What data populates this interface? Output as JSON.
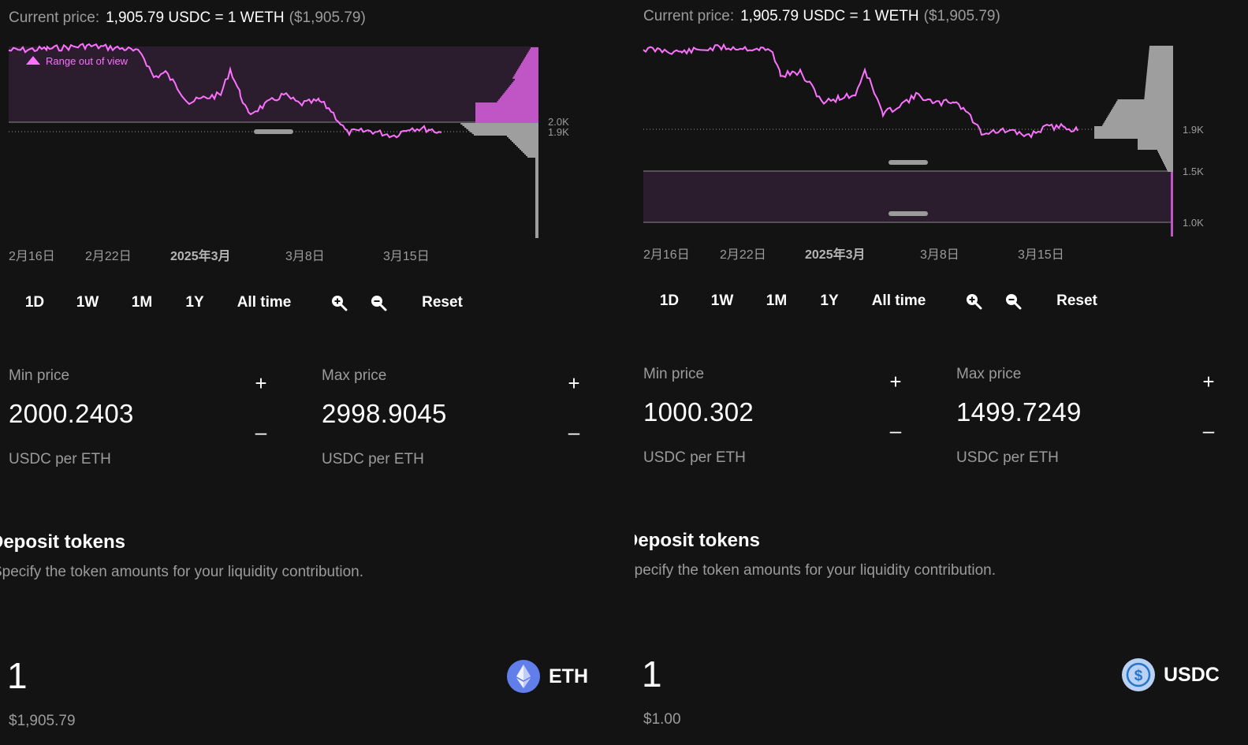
{
  "left": {
    "price_label": "Current price:",
    "price_value": "1,905.79 USDC = 1 WETH",
    "price_usd": "($1,905.79)",
    "range_note": "Range out of view",
    "y_labels": [
      "2.0K",
      "1.9K"
    ],
    "x_labels": [
      "2月16日",
      "2月22日",
      "2025年3月",
      "3月8日",
      "3月15日"
    ],
    "time_buttons": [
      "1D",
      "1W",
      "1M",
      "1Y",
      "All time"
    ],
    "reset_label": "Reset",
    "min": {
      "label": "Min price",
      "value": "2000.2403",
      "unit": "USDC per ETH"
    },
    "max": {
      "label": "Max price",
      "value": "2998.9045",
      "unit": "USDC per ETH"
    },
    "deposit_title": "Deposit tokens",
    "deposit_sub": "Specify the token amounts for your liquidity contribution.",
    "amount": "1",
    "amount_usd": "$1,905.79",
    "token": "ETH"
  },
  "right": {
    "price_label": "Current price:",
    "price_value": "1,905.79 USDC = 1 WETH",
    "price_usd": "($1,905.79)",
    "y_labels": [
      "1.9K",
      "1.5K",
      "1.0K"
    ],
    "x_labels": [
      "2月16日",
      "2月22日",
      "2025年3月",
      "3月8日",
      "3月15日"
    ],
    "time_buttons": [
      "1D",
      "1W",
      "1M",
      "1Y",
      "All time"
    ],
    "reset_label": "Reset",
    "min": {
      "label": "Min price",
      "value": "1000.302",
      "unit": "USDC per ETH"
    },
    "max": {
      "label": "Max price",
      "value": "1499.7249",
      "unit": "USDC per ETH"
    },
    "deposit_title": "Deposit tokens",
    "deposit_sub": "Specify the token amounts for your liquidity contribution.",
    "amount": "1",
    "amount_usd": "$1.00",
    "token": "USDC"
  },
  "colors": {
    "accent": "#fc72ff",
    "range_fill": "#2b1c2e",
    "background": "#131313",
    "eth_icon": "#627eea",
    "usdc_icon": "#2775ca"
  },
  "icons": [
    "zoom-in-icon",
    "zoom-out-icon",
    "plus-icon",
    "minus-icon",
    "eth-token-icon",
    "usdc-token-icon",
    "range-out-of-view-icon"
  ]
}
